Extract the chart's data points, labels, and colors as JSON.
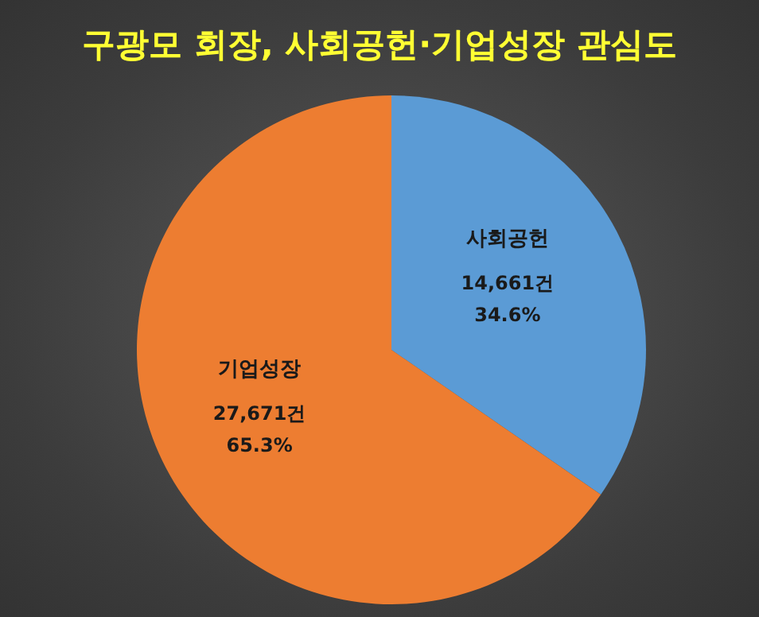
{
  "chart_data": {
    "type": "pie",
    "title": "구광모 회장, 사회공헌·기업성장 관심도",
    "categories": [
      "사회공헌",
      "기업성장"
    ],
    "values": [
      14661,
      27671
    ],
    "colors": [
      "#5b9bd5",
      "#ed7d31"
    ],
    "value_labels": [
      "14,661건\n34.6%",
      "27,671건\n65.3%"
    ],
    "legend": false
  }
}
